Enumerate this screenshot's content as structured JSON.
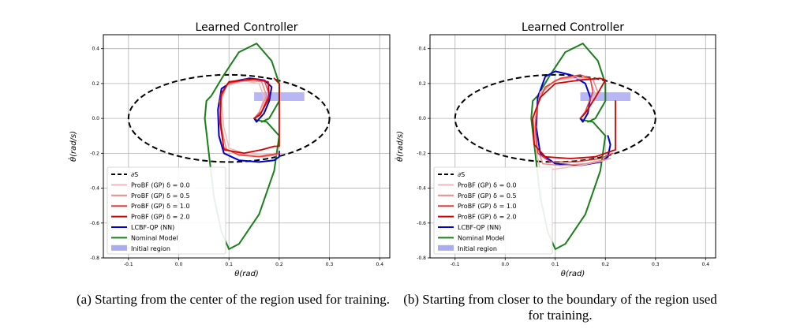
{
  "captions": {
    "a": "(a) Starting from the center of the region used for training.",
    "b": "(b) Starting from closer to the boundary of the region used for training."
  },
  "legend_labels": [
    "∂S",
    "ProBF (GP) δ = 0.0",
    "ProBF (GP) δ = 0.5",
    "ProBF (GP) δ = 1.0",
    "ProBF (GP) δ = 2.0",
    "LCBF-QP (NN)",
    "Nominal Model",
    "Initial region"
  ],
  "chart_data": [
    {
      "type": "line",
      "title": "Learned Controller",
      "xlabel": "θ(rad)",
      "ylabel": "θ̇(rad/s)",
      "xlim": [
        -0.15,
        0.42
      ],
      "ylim": [
        -0.8,
        0.48
      ],
      "xticks": [
        -0.1,
        0.0,
        0.1,
        0.2,
        0.3,
        0.4
      ],
      "yticks": [
        -0.8,
        -0.6,
        -0.4,
        -0.2,
        0.0,
        0.2,
        0.4
      ],
      "grid": true,
      "legend_position": "lower-left",
      "safe_set_boundary": {
        "name": "∂S",
        "center": [
          0.1,
          0.0
        ],
        "radius_x": 0.2,
        "radius_y": 0.25,
        "color": "#000000",
        "style": "dashed"
      },
      "initial_region": {
        "name": "Initial region",
        "x": [
          0.15,
          0.25
        ],
        "y": [
          0.1,
          0.15
        ],
        "color": "#aaaaf5"
      },
      "series": [
        {
          "name": "Nominal Model",
          "color": "#1a7f1a",
          "width": 2,
          "points": [
            [
              0.15,
              0.0
            ],
            [
              0.155,
              -0.01
            ],
            [
              0.175,
              -0.02
            ],
            [
              0.2,
              -0.1
            ],
            [
              0.19,
              -0.3
            ],
            [
              0.16,
              -0.55
            ],
            [
              0.12,
              -0.72
            ],
            [
              0.1,
              -0.75
            ],
            [
              0.085,
              -0.65
            ],
            [
              0.07,
              -0.45
            ],
            [
              0.06,
              -0.2
            ],
            [
              0.052,
              0.0
            ],
            [
              0.055,
              0.1
            ],
            [
              0.065,
              0.13
            ],
            [
              0.09,
              0.25
            ],
            [
              0.12,
              0.38
            ],
            [
              0.155,
              0.43
            ],
            [
              0.185,
              0.33
            ],
            [
              0.2,
              0.2
            ],
            [
              0.2,
              0.1
            ],
            [
              0.18,
              0.0
            ],
            [
              0.165,
              -0.02
            ]
          ]
        },
        {
          "name": "LCBF-QP (NN)",
          "color": "#0000cc",
          "width": 2,
          "points": [
            [
              0.15,
              0.0
            ],
            [
              0.155,
              -0.02
            ],
            [
              0.17,
              0.03
            ],
            [
              0.18,
              0.1
            ],
            [
              0.185,
              0.18
            ],
            [
              0.17,
              0.22
            ],
            [
              0.14,
              0.23
            ],
            [
              0.105,
              0.21
            ],
            [
              0.085,
              0.17
            ],
            [
              0.078,
              0.05
            ],
            [
              0.08,
              -0.1
            ],
            [
              0.09,
              -0.2
            ],
            [
              0.12,
              -0.24
            ],
            [
              0.16,
              -0.25
            ],
            [
              0.19,
              -0.24
            ],
            [
              0.2,
              -0.22
            ],
            [
              0.2,
              -0.19
            ]
          ]
        },
        {
          "name": "ProBF (GP) δ = 0.0",
          "color": "#f6b9b9",
          "width": 1.5,
          "points": [
            [
              0.15,
              0.0
            ],
            [
              0.16,
              0.03
            ],
            [
              0.17,
              0.12
            ],
            [
              0.16,
              0.2
            ],
            [
              0.13,
              0.215
            ],
            [
              0.095,
              0.19
            ],
            [
              0.085,
              0.1
            ],
            [
              0.09,
              -0.05
            ],
            [
              0.1,
              -0.17
            ],
            [
              0.13,
              -0.2
            ],
            [
              0.165,
              -0.21
            ],
            [
              0.19,
              -0.2
            ]
          ]
        },
        {
          "name": "ProBF (GP) δ = 0.5",
          "color": "#ee8a8a",
          "width": 1.5,
          "points": [
            [
              0.15,
              0.0
            ],
            [
              0.16,
              0.035
            ],
            [
              0.175,
              0.13
            ],
            [
              0.165,
              0.21
            ],
            [
              0.13,
              0.22
            ],
            [
              0.095,
              0.19
            ],
            [
              0.082,
              0.1
            ],
            [
              0.085,
              -0.05
            ],
            [
              0.095,
              -0.18
            ],
            [
              0.13,
              -0.21
            ],
            [
              0.165,
              -0.22
            ],
            [
              0.195,
              -0.21
            ]
          ]
        },
        {
          "name": "ProBF (GP) δ = 1.0",
          "color": "#e63c3c",
          "width": 1.5,
          "points": [
            [
              0.15,
              0.0
            ],
            [
              0.165,
              0.04
            ],
            [
              0.18,
              0.14
            ],
            [
              0.17,
              0.22
            ],
            [
              0.135,
              0.225
            ],
            [
              0.098,
              0.2
            ],
            [
              0.083,
              0.12
            ],
            [
              0.082,
              -0.03
            ],
            [
              0.09,
              -0.17
            ],
            [
              0.12,
              -0.21
            ],
            [
              0.16,
              -0.22
            ],
            [
              0.2,
              -0.2
            ]
          ]
        },
        {
          "name": "ProBF (GP) δ = 2.0",
          "color": "#d40000",
          "width": 1.8,
          "points": [
            [
              0.15,
              0.0
            ],
            [
              0.162,
              0.02
            ],
            [
              0.18,
              0.12
            ],
            [
              0.178,
              0.21
            ],
            [
              0.15,
              0.225
            ],
            [
              0.1,
              0.21
            ],
            [
              0.084,
              0.14
            ],
            [
              0.083,
              -0.02
            ],
            [
              0.09,
              -0.18
            ],
            [
              0.13,
              -0.2
            ],
            [
              0.165,
              -0.18
            ],
            [
              0.19,
              -0.16
            ],
            [
              0.2,
              -0.16
            ],
            [
              0.2,
              0.2
            ],
            [
              0.19,
              0.23
            ]
          ]
        }
      ]
    },
    {
      "type": "line",
      "title": "Learned Controller",
      "xlabel": "θ(rad)",
      "ylabel": "θ̇(rad/s)",
      "xlim": [
        -0.15,
        0.42
      ],
      "ylim": [
        -0.8,
        0.48
      ],
      "xticks": [
        -0.1,
        0.0,
        0.1,
        0.2,
        0.3,
        0.4
      ],
      "yticks": [
        -0.8,
        -0.6,
        -0.4,
        -0.2,
        0.0,
        0.2,
        0.4
      ],
      "grid": true,
      "legend_position": "lower-left",
      "safe_set_boundary": {
        "name": "∂S",
        "center": [
          0.1,
          0.0
        ],
        "radius_x": 0.2,
        "radius_y": 0.25,
        "color": "#000000",
        "style": "dashed"
      },
      "initial_region": {
        "name": "Initial region",
        "x": [
          0.15,
          0.25
        ],
        "y": [
          0.1,
          0.15
        ],
        "color": "#aaaaf5"
      },
      "series": [
        {
          "name": "Nominal Model",
          "color": "#1a7f1a",
          "width": 2,
          "points": [
            [
              0.15,
              0.0
            ],
            [
              0.155,
              -0.01
            ],
            [
              0.175,
              -0.02
            ],
            [
              0.2,
              -0.1
            ],
            [
              0.19,
              -0.3
            ],
            [
              0.16,
              -0.55
            ],
            [
              0.12,
              -0.72
            ],
            [
              0.1,
              -0.75
            ],
            [
              0.085,
              -0.65
            ],
            [
              0.07,
              -0.45
            ],
            [
              0.06,
              -0.2
            ],
            [
              0.052,
              0.0
            ],
            [
              0.055,
              0.1
            ],
            [
              0.065,
              0.13
            ],
            [
              0.09,
              0.25
            ],
            [
              0.12,
              0.38
            ],
            [
              0.155,
              0.43
            ],
            [
              0.185,
              0.33
            ],
            [
              0.2,
              0.2
            ],
            [
              0.2,
              0.1
            ],
            [
              0.18,
              0.0
            ],
            [
              0.165,
              -0.02
            ]
          ]
        },
        {
          "name": "LCBF-QP (NN)",
          "color": "#0000cc",
          "width": 2,
          "points": [
            [
              0.15,
              0.0
            ],
            [
              0.155,
              -0.02
            ],
            [
              0.165,
              0.03
            ],
            [
              0.17,
              0.12
            ],
            [
              0.16,
              0.2
            ],
            [
              0.13,
              0.25
            ],
            [
              0.1,
              0.27
            ],
            [
              0.08,
              0.24
            ],
            [
              0.065,
              0.12
            ],
            [
              0.062,
              -0.05
            ],
            [
              0.07,
              -0.2
            ],
            [
              0.1,
              -0.26
            ],
            [
              0.15,
              -0.27
            ],
            [
              0.19,
              -0.25
            ],
            [
              0.205,
              -0.22
            ],
            [
              0.21,
              -0.15
            ],
            [
              0.205,
              -0.1
            ]
          ]
        },
        {
          "name": "ProBF (GP) δ = 0.0",
          "color": "#f6b9b9",
          "width": 1.5,
          "points": [
            [
              0.15,
              0.0
            ],
            [
              0.165,
              0.05
            ],
            [
              0.18,
              0.14
            ],
            [
              0.17,
              0.22
            ],
            [
              0.14,
              0.23
            ],
            [
              0.1,
              0.22
            ],
            [
              0.07,
              0.15
            ],
            [
              0.06,
              0.0
            ],
            [
              0.06,
              -0.15
            ],
            [
              0.07,
              -0.3
            ],
            [
              0.1,
              -0.29
            ],
            [
              0.15,
              -0.27
            ],
            [
              0.2,
              -0.24
            ]
          ]
        },
        {
          "name": "ProBF (GP) δ = 0.5",
          "color": "#ee8a8a",
          "width": 1.5,
          "points": [
            [
              0.15,
              0.0
            ],
            [
              0.165,
              0.05
            ],
            [
              0.185,
              0.15
            ],
            [
              0.175,
              0.225
            ],
            [
              0.14,
              0.24
            ],
            [
              0.1,
              0.22
            ],
            [
              0.07,
              0.14
            ],
            [
              0.06,
              0.0
            ],
            [
              0.062,
              -0.15
            ],
            [
              0.075,
              -0.26
            ],
            [
              0.11,
              -0.27
            ],
            [
              0.16,
              -0.26
            ],
            [
              0.21,
              -0.23
            ]
          ]
        },
        {
          "name": "ProBF (GP) δ = 1.0",
          "color": "#e63c3c",
          "width": 1.5,
          "points": [
            [
              0.15,
              0.0
            ],
            [
              0.16,
              0.04
            ],
            [
              0.175,
              0.15
            ],
            [
              0.17,
              0.23
            ],
            [
              0.15,
              0.25
            ],
            [
              0.11,
              0.23
            ],
            [
              0.08,
              0.18
            ],
            [
              0.065,
              0.08
            ],
            [
              0.06,
              -0.05
            ],
            [
              0.065,
              -0.2
            ],
            [
              0.09,
              -0.25
            ],
            [
              0.14,
              -0.25
            ],
            [
              0.19,
              -0.23
            ],
            [
              0.215,
              -0.2
            ]
          ]
        },
        {
          "name": "ProBF (GP) δ = 2.0",
          "color": "#d40000",
          "width": 1.8,
          "points": [
            [
              0.15,
              0.0
            ],
            [
              0.16,
              0.03
            ],
            [
              0.18,
              0.12
            ],
            [
              0.2,
              0.22
            ],
            [
              0.19,
              0.23
            ],
            [
              0.15,
              0.22
            ],
            [
              0.1,
              0.2
            ],
            [
              0.07,
              0.12
            ],
            [
              0.055,
              0.0
            ],
            [
              0.058,
              -0.15
            ],
            [
              0.08,
              -0.22
            ],
            [
              0.13,
              -0.23
            ],
            [
              0.18,
              -0.22
            ],
            [
              0.22,
              -0.18
            ],
            [
              0.22,
              0.1
            ]
          ]
        }
      ]
    }
  ]
}
